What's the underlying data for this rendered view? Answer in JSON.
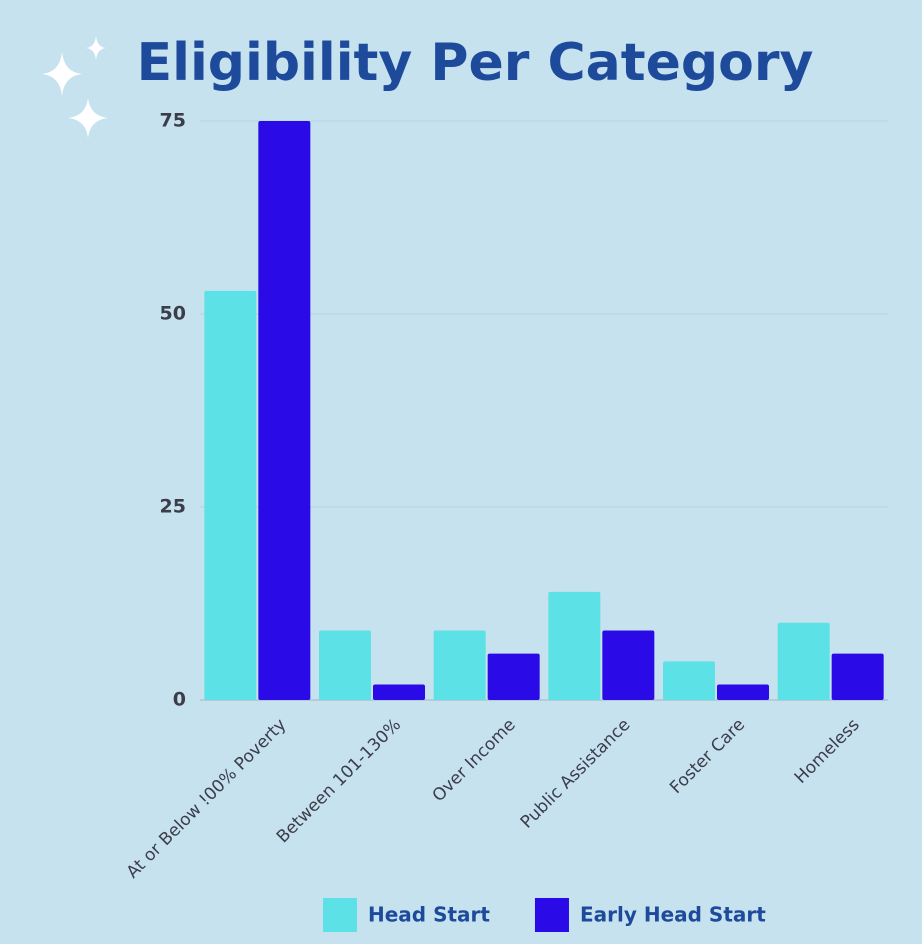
{
  "chart_data": {
    "type": "bar",
    "title": "Eligibility Per Category",
    "categories": [
      "At or Below !00% Poverty",
      "Between 101-130%",
      "Over Income",
      "Public Assistance",
      "Foster Care",
      "Homeless"
    ],
    "series": [
      {
        "name": "Head Start",
        "color": "#5ce1e6",
        "values": [
          53,
          9,
          9,
          14,
          5,
          10
        ]
      },
      {
        "name": "Early Head Start",
        "color": "#2a0ae6",
        "values": [
          75,
          2,
          6,
          9,
          2,
          6
        ]
      }
    ],
    "ylim": [
      0,
      75
    ],
    "yticks": [
      0,
      25,
      50,
      75
    ],
    "grid": true,
    "legend": "bottom"
  }
}
